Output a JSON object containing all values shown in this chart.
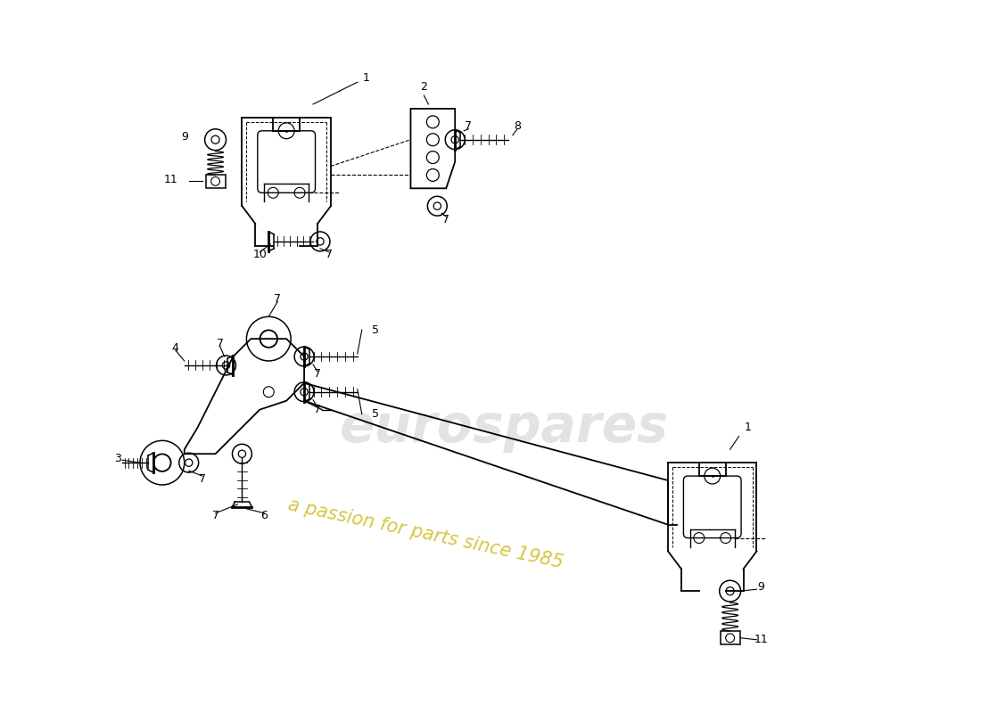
{
  "background_color": "#ffffff",
  "line_color": "#000000",
  "watermark1": "eurospares",
  "watermark2": "a passion for parts since 1985",
  "wm1_color": "#cccccc",
  "wm2_color": "#c8b400",
  "font_size": 9
}
